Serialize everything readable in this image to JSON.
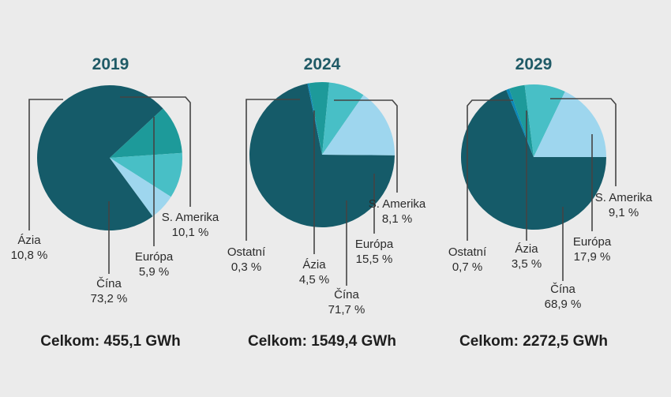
{
  "chart_data": [
    {
      "type": "pie",
      "title": "2019",
      "total_label": "Celkom: 455,1 GWh",
      "slices": [
        {
          "name": "Čína",
          "value": 73.2,
          "label": "Čína",
          "pct_label": "73,2 %",
          "color": "#155b69"
        },
        {
          "name": "Ázia",
          "value": 10.8,
          "label": "Ázia",
          "pct_label": "10,8 %",
          "color": "#1d9a9a"
        },
        {
          "name": "S. Amerika",
          "value": 10.1,
          "label": "S. Amerika",
          "pct_label": "10,1 %",
          "color": "#48bfc6"
        },
        {
          "name": "Európa",
          "value": 5.9,
          "label": "Európa",
          "pct_label": "5,9 %",
          "color": "#9ed6ee"
        }
      ]
    },
    {
      "type": "pie",
      "title": "2024",
      "total_label": "Celkom: 1549,4 GWh",
      "slices": [
        {
          "name": "Čína",
          "value": 71.7,
          "label": "Čína",
          "pct_label": "71,7 %",
          "color": "#155b69"
        },
        {
          "name": "Ostatní",
          "value": 0.3,
          "label": "Ostatní",
          "pct_label": "0,3 %",
          "color": "#0a88b8"
        },
        {
          "name": "Ázia",
          "value": 4.5,
          "label": "Ázia",
          "pct_label": "4,5 %",
          "color": "#1d9a9a"
        },
        {
          "name": "S. Amerika",
          "value": 8.1,
          "label": "S. Amerika",
          "pct_label": "8,1 %",
          "color": "#48bfc6"
        },
        {
          "name": "Európa",
          "value": 15.5,
          "label": "Európa",
          "pct_label": "15,5 %",
          "color": "#9ed6ee"
        }
      ]
    },
    {
      "type": "pie",
      "title": "2029",
      "total_label": "Celkom: 2272,5 GWh",
      "slices": [
        {
          "name": "Čína",
          "value": 68.9,
          "label": "Čína",
          "pct_label": "68,9 %",
          "color": "#155b69"
        },
        {
          "name": "Ostatní",
          "value": 0.7,
          "label": "Ostatní",
          "pct_label": "0,7 %",
          "color": "#0a88b8"
        },
        {
          "name": "Ázia",
          "value": 3.5,
          "label": "Ázia",
          "pct_label": "3,5 %",
          "color": "#1d9a9a"
        },
        {
          "name": "S. Amerika",
          "value": 9.1,
          "label": "S. Amerika",
          "pct_label": "9,1 %",
          "color": "#48bfc6"
        },
        {
          "name": "Európa",
          "value": 17.9,
          "label": "Európa",
          "pct_label": "17,9 %",
          "color": "#9ed6ee"
        }
      ]
    }
  ]
}
